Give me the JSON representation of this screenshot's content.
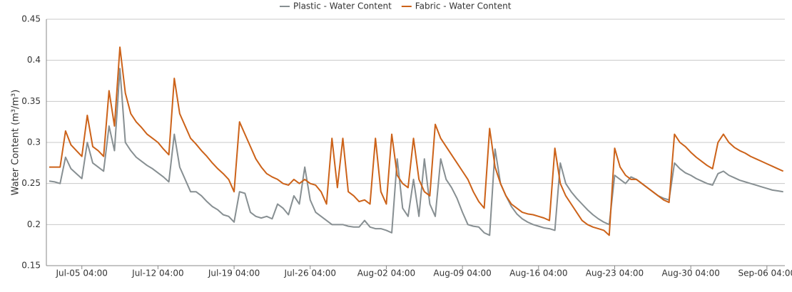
{
  "chart_data": {
    "type": "line",
    "y_label": "Water Content (m³/m³)",
    "x": [
      "Jul-02 04:00",
      "Jul-02 16:00",
      "Jul-03 04:00",
      "Jul-03 16:00",
      "Jul-04 04:00",
      "Jul-04 16:00",
      "Jul-05 04:00",
      "Jul-05 16:00",
      "Jul-06 04:00",
      "Jul-06 16:00",
      "Jul-07 04:00",
      "Jul-07 16:00",
      "Jul-08 04:00",
      "Jul-08 16:00",
      "Jul-09 04:00",
      "Jul-09 16:00",
      "Jul-10 04:00",
      "Jul-10 16:00",
      "Jul-11 04:00",
      "Jul-11 16:00",
      "Jul-12 04:00",
      "Jul-12 16:00",
      "Jul-13 04:00",
      "Jul-13 16:00",
      "Jul-14 04:00",
      "Jul-14 16:00",
      "Jul-15 04:00",
      "Jul-15 16:00",
      "Jul-16 04:00",
      "Jul-16 16:00",
      "Jul-17 04:00",
      "Jul-17 16:00",
      "Jul-18 04:00",
      "Jul-18 16:00",
      "Jul-19 04:00",
      "Jul-19 16:00",
      "Jul-20 04:00",
      "Jul-20 16:00",
      "Jul-21 04:00",
      "Jul-21 16:00",
      "Jul-22 04:00",
      "Jul-22 16:00",
      "Jul-23 04:00",
      "Jul-23 16:00",
      "Jul-24 04:00",
      "Jul-24 16:00",
      "Jul-25 04:00",
      "Jul-25 16:00",
      "Jul-26 04:00",
      "Jul-26 16:00",
      "Jul-27 04:00",
      "Jul-27 16:00",
      "Jul-28 04:00",
      "Jul-28 16:00",
      "Jul-29 04:00",
      "Jul-29 16:00",
      "Jul-30 04:00",
      "Jul-30 16:00",
      "Jul-31 04:00",
      "Jul-31 16:00",
      "Aug-01 04:00",
      "Aug-01 16:00",
      "Aug-02 04:00",
      "Aug-02 16:00",
      "Aug-03 04:00",
      "Aug-03 16:00",
      "Aug-04 04:00",
      "Aug-04 16:00",
      "Aug-05 04:00",
      "Aug-05 16:00",
      "Aug-06 04:00",
      "Aug-06 16:00",
      "Aug-07 04:00",
      "Aug-07 16:00",
      "Aug-08 04:00",
      "Aug-08 16:00",
      "Aug-09 04:00",
      "Aug-09 16:00",
      "Aug-10 04:00",
      "Aug-10 16:00",
      "Aug-11 04:00",
      "Aug-11 16:00",
      "Aug-12 04:00",
      "Aug-12 16:00",
      "Aug-13 04:00",
      "Aug-13 16:00",
      "Aug-14 04:00",
      "Aug-14 16:00",
      "Aug-15 04:00",
      "Aug-15 16:00",
      "Aug-16 04:00",
      "Aug-16 16:00",
      "Aug-17 04:00",
      "Aug-17 16:00",
      "Aug-18 04:00",
      "Aug-18 16:00",
      "Aug-19 04:00",
      "Aug-19 16:00",
      "Aug-20 04:00",
      "Aug-20 16:00",
      "Aug-21 04:00",
      "Aug-21 16:00",
      "Aug-22 04:00",
      "Aug-22 16:00",
      "Aug-23 04:00",
      "Aug-23 16:00",
      "Aug-24 04:00",
      "Aug-24 16:00",
      "Aug-25 04:00",
      "Aug-25 16:00",
      "Aug-26 04:00",
      "Aug-26 16:00",
      "Aug-27 04:00",
      "Aug-27 16:00",
      "Aug-28 04:00",
      "Aug-28 16:00",
      "Aug-29 04:00",
      "Aug-29 16:00",
      "Aug-30 04:00",
      "Aug-30 16:00",
      "Aug-31 04:00",
      "Aug-31 16:00",
      "Sep-01 04:00",
      "Sep-01 16:00",
      "Sep-02 04:00",
      "Sep-02 16:00",
      "Sep-03 04:00",
      "Sep-03 16:00",
      "Sep-04 04:00",
      "Sep-04 16:00",
      "Sep-05 04:00",
      "Sep-05 16:00",
      "Sep-06 04:00",
      "Sep-06 16:00",
      "Sep-07 04:00",
      "Sep-07 16:00"
    ],
    "xticks": [
      "Jul-05 04:00",
      "Jul-12 04:00",
      "Jul-19 04:00",
      "Jul-26 04:00",
      "Aug-02 04:00",
      "Aug-09 04:00",
      "Aug-16 04:00",
      "Aug-23 04:00",
      "Aug-30 04:00",
      "Sep-06 04:00"
    ],
    "series": [
      {
        "name": "Plastic - Water Content",
        "color": "#878f92",
        "values": [
          0.253,
          0.252,
          0.25,
          0.282,
          0.268,
          0.262,
          0.256,
          0.3,
          0.275,
          0.27,
          0.265,
          0.32,
          0.29,
          0.39,
          0.3,
          0.29,
          0.282,
          0.277,
          0.272,
          0.268,
          0.263,
          0.258,
          0.252,
          0.31,
          0.27,
          0.255,
          0.24,
          0.24,
          0.235,
          0.228,
          0.222,
          0.218,
          0.212,
          0.21,
          0.203,
          0.24,
          0.238,
          0.215,
          0.21,
          0.208,
          0.21,
          0.207,
          0.225,
          0.22,
          0.212,
          0.235,
          0.225,
          0.27,
          0.23,
          0.215,
          0.21,
          0.205,
          0.2,
          0.2,
          0.2,
          0.198,
          0.197,
          0.197,
          0.205,
          0.197,
          0.195,
          0.195,
          0.193,
          0.19,
          0.28,
          0.22,
          0.21,
          0.255,
          0.21,
          0.28,
          0.225,
          0.21,
          0.28,
          0.255,
          0.245,
          0.232,
          0.215,
          0.2,
          0.198,
          0.197,
          0.19,
          0.187,
          0.292,
          0.25,
          0.235,
          0.222,
          0.213,
          0.207,
          0.203,
          0.2,
          0.198,
          0.196,
          0.195,
          0.193,
          0.275,
          0.25,
          0.24,
          0.232,
          0.225,
          0.218,
          0.212,
          0.207,
          0.203,
          0.2,
          0.26,
          0.255,
          0.25,
          0.258,
          0.255,
          0.25,
          0.245,
          0.24,
          0.235,
          0.232,
          0.23,
          0.275,
          0.268,
          0.263,
          0.26,
          0.256,
          0.253,
          0.25,
          0.248,
          0.262,
          0.265,
          0.26,
          0.257,
          0.254,
          0.252,
          0.25,
          0.248,
          0.246,
          0.244,
          0.242,
          0.241,
          0.24
        ]
      },
      {
        "name": "Fabric - Water Content",
        "color": "#cc6219",
        "values": [
          0.27,
          0.27,
          0.27,
          0.314,
          0.297,
          0.29,
          0.283,
          0.333,
          0.295,
          0.29,
          0.283,
          0.363,
          0.32,
          0.416,
          0.36,
          0.335,
          0.325,
          0.318,
          0.31,
          0.305,
          0.3,
          0.292,
          0.285,
          0.378,
          0.335,
          0.32,
          0.305,
          0.298,
          0.29,
          0.283,
          0.275,
          0.268,
          0.262,
          0.255,
          0.24,
          0.325,
          0.31,
          0.295,
          0.28,
          0.27,
          0.262,
          0.258,
          0.255,
          0.25,
          0.248,
          0.255,
          0.25,
          0.255,
          0.25,
          0.248,
          0.24,
          0.225,
          0.305,
          0.245,
          0.305,
          0.24,
          0.235,
          0.228,
          0.23,
          0.225,
          0.305,
          0.24,
          0.225,
          0.31,
          0.26,
          0.25,
          0.245,
          0.305,
          0.255,
          0.24,
          0.235,
          0.322,
          0.305,
          0.295,
          0.285,
          0.275,
          0.265,
          0.255,
          0.24,
          0.228,
          0.22,
          0.317,
          0.27,
          0.25,
          0.235,
          0.225,
          0.22,
          0.215,
          0.213,
          0.212,
          0.21,
          0.208,
          0.205,
          0.293,
          0.25,
          0.235,
          0.225,
          0.215,
          0.205,
          0.2,
          0.197,
          0.195,
          0.193,
          0.187,
          0.293,
          0.27,
          0.26,
          0.255,
          0.255,
          0.25,
          0.245,
          0.24,
          0.235,
          0.23,
          0.227,
          0.31,
          0.3,
          0.295,
          0.288,
          0.282,
          0.277,
          0.272,
          0.268,
          0.3,
          0.31,
          0.3,
          0.294,
          0.29,
          0.287,
          0.283,
          0.28,
          0.277,
          0.274,
          0.271,
          0.268,
          0.265
        ]
      }
    ],
    "ylim": [
      0.15,
      0.45
    ],
    "yticks": [
      0.15,
      0.2,
      0.25,
      0.3,
      0.35,
      0.4,
      0.45
    ],
    "grid": true,
    "legend": "top"
  }
}
